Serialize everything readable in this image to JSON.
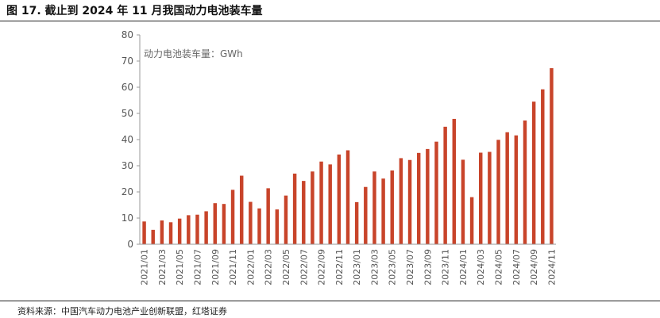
{
  "header": {
    "title": "图 17. 截止到 2024 年 11 月我国动力电池装车量"
  },
  "footer": {
    "source": "资料来源：中国汽车动力电池产业创新联盟，红塔证券"
  },
  "chart_data": {
    "type": "bar",
    "title": "",
    "xlabel": "",
    "ylabel": "动力电池装车量：GWh",
    "ylim": [
      0,
      80
    ],
    "yticks": [
      0,
      10,
      20,
      30,
      40,
      50,
      60,
      70,
      80
    ],
    "grid": false,
    "legend": "none",
    "bar_color": "#C8442A",
    "categories": [
      "2021/01",
      "2021/02",
      "2021/03",
      "2021/04",
      "2021/05",
      "2021/06",
      "2021/07",
      "2021/08",
      "2021/09",
      "2021/10",
      "2021/11",
      "2021/12",
      "2022/01",
      "2022/02",
      "2022/03",
      "2022/04",
      "2022/05",
      "2022/06",
      "2022/07",
      "2022/08",
      "2022/09",
      "2022/10",
      "2022/11",
      "2022/12",
      "2023/01",
      "2023/02",
      "2023/03",
      "2023/04",
      "2023/05",
      "2023/06",
      "2023/07",
      "2023/08",
      "2023/09",
      "2023/10",
      "2023/11",
      "2023/12",
      "2024/01",
      "2024/02",
      "2024/03",
      "2024/04",
      "2024/05",
      "2024/06",
      "2024/07",
      "2024/08",
      "2024/09",
      "2024/10",
      "2024/11"
    ],
    "x_tick_labels": [
      "2021/01",
      "2021/03",
      "2021/05",
      "2021/07",
      "2021/09",
      "2021/11",
      "2022/01",
      "2022/03",
      "2022/05",
      "2022/07",
      "2022/09",
      "2022/11",
      "2023/01",
      "2023/03",
      "2023/05",
      "2023/07",
      "2023/09",
      "2023/11",
      "2024/01",
      "2024/03",
      "2024/05",
      "2024/07",
      "2024/09",
      "2024/11"
    ],
    "values": [
      8.7,
      5.5,
      9.1,
      8.4,
      9.8,
      11.1,
      11.3,
      12.6,
      15.7,
      15.4,
      20.8,
      26.2,
      16.2,
      13.7,
      21.4,
      13.3,
      18.6,
      27.0,
      24.2,
      27.8,
      31.6,
      30.5,
      34.3,
      35.9,
      16.1,
      21.9,
      27.8,
      25.1,
      28.2,
      32.9,
      32.2,
      34.9,
      36.4,
      39.2,
      44.9,
      47.9,
      32.3,
      18.0,
      35.0,
      35.3,
      39.9,
      42.8,
      41.6,
      47.3,
      54.5,
      59.2,
      67.3
    ]
  }
}
